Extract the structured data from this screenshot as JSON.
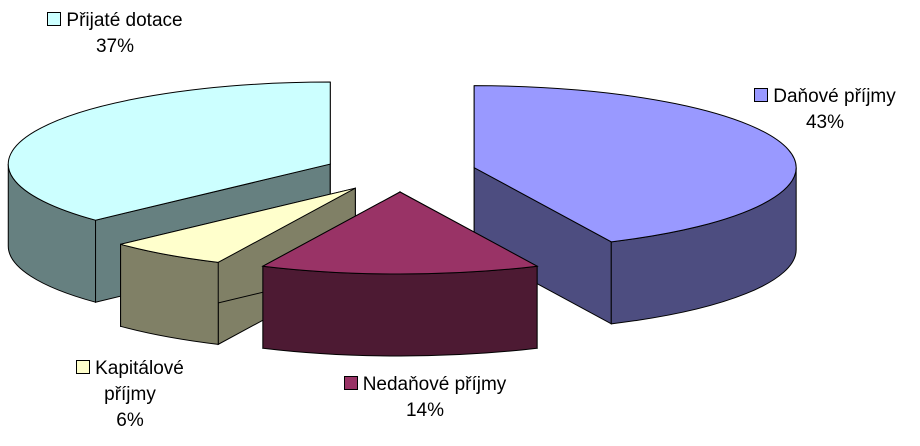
{
  "chart_data": {
    "type": "pie3d",
    "categories": [
      "Daňové příjmy",
      "Nedaňové příjmy",
      "Kapitálové příjmy",
      "Přijaté dotace"
    ],
    "values": [
      43,
      14,
      6,
      37
    ],
    "value_labels": [
      "43%",
      "14%",
      "6%",
      "37%"
    ],
    "colors": [
      "#9999ff",
      "#993366",
      "#ffffcc",
      "#ccffff"
    ]
  }
}
